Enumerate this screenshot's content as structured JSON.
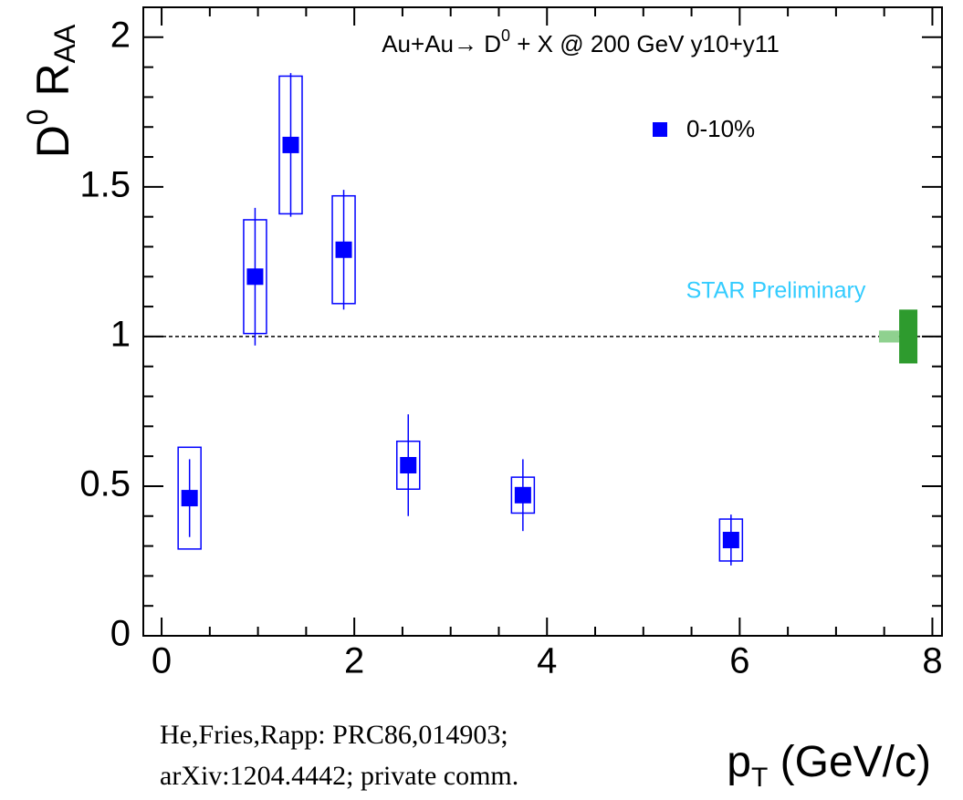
{
  "chart_data": {
    "type": "scatter",
    "title_parts": [
      "Au+Au→ D",
      "0",
      " + X @ 200 GeV y10+y11"
    ],
    "x_label_parts": [
      "p",
      "T",
      " (GeV/c)"
    ],
    "y_label_parts": [
      "D",
      "0",
      " R",
      "AA"
    ],
    "annotation": "STAR Preliminary",
    "citation": [
      "He,Fries,Rapp: PRC86,014903;",
      "arXiv:1204.4442; private comm."
    ],
    "xlim": [
      -0.19,
      8.1
    ],
    "ylim": [
      0,
      2.1
    ],
    "xticks": [
      0,
      2,
      4,
      6,
      8
    ],
    "yticks": [
      0,
      0.5,
      1,
      1.5,
      2
    ],
    "xminor_ticks": [
      0.5,
      1,
      1.5,
      2.5,
      3,
      3.5,
      4.5,
      5,
      5.5,
      6.5,
      7,
      7.5
    ],
    "yminor_ticks": [
      0.1,
      0.2,
      0.3,
      0.4,
      0.6,
      0.7,
      0.8,
      0.9,
      1.1,
      1.2,
      1.3,
      1.4,
      1.6,
      1.7,
      1.8,
      1.9
    ],
    "reference_line": 1,
    "series": [
      {
        "name": "0-10%",
        "color": "#0000ff",
        "x": [
          0.29,
          0.97,
          1.34,
          1.89,
          2.56,
          3.75,
          5.91
        ],
        "values": [
          0.46,
          1.2,
          1.64,
          1.29,
          0.57,
          0.47,
          0.32
        ],
        "stat_errors": [
          0.13,
          0.23,
          0.24,
          0.2,
          0.17,
          0.12,
          0.085
        ],
        "sys_errors": [
          0.17,
          0.19,
          0.23,
          0.18,
          0.08,
          0.06,
          0.07
        ]
      }
    ],
    "norm_band": {
      "center": 1,
      "x": [
        7.55,
        7.75
      ],
      "errors": [
        0.02,
        0.09
      ],
      "colors": [
        "#8fd18f",
        "#2e9b2e"
      ]
    }
  }
}
